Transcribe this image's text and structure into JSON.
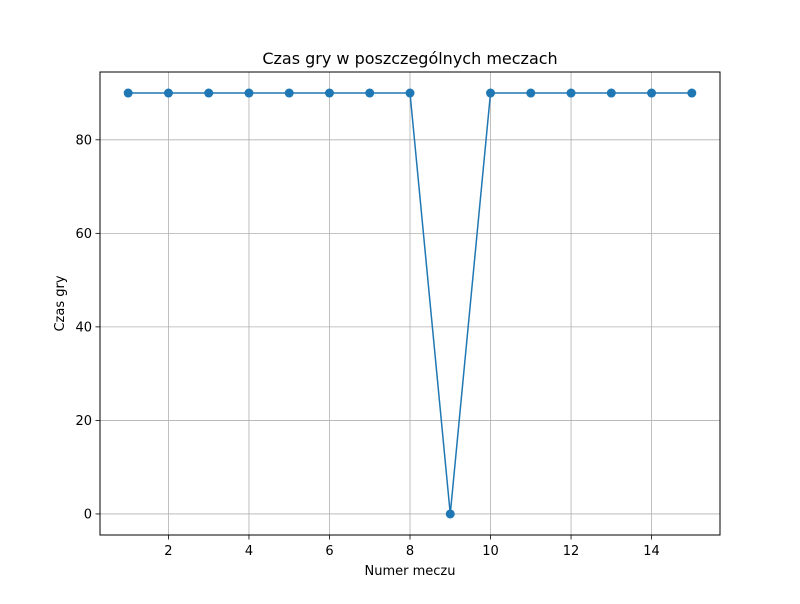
{
  "chart_data": {
    "type": "line",
    "title": "Czas gry w poszczególnych meczach",
    "xlabel": "Numer meczu",
    "ylabel": "Czas gry",
    "xlim": [
      0.3,
      15.7
    ],
    "ylim": [
      -4.5,
      94.5
    ],
    "xticks": [
      2,
      4,
      6,
      8,
      10,
      12,
      14
    ],
    "yticks": [
      0,
      20,
      40,
      60,
      80
    ],
    "grid": true,
    "series": [
      {
        "x": [
          1,
          2,
          3,
          4,
          5,
          6,
          7,
          8,
          9,
          10,
          11,
          12,
          13,
          14,
          15
        ],
        "values": [
          90,
          90,
          90,
          90,
          90,
          90,
          90,
          90,
          0,
          90,
          90,
          90,
          90,
          90,
          90
        ],
        "color": "#1f77b4",
        "marker": "circle"
      }
    ]
  }
}
